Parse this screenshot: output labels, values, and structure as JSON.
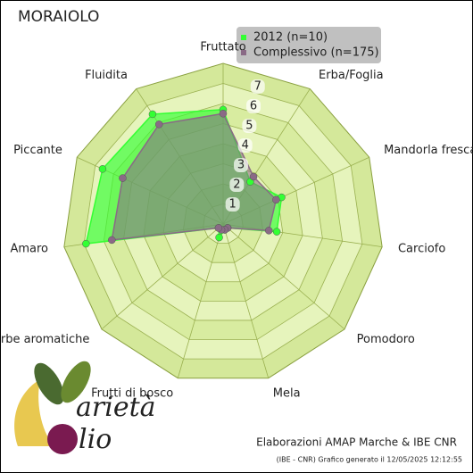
{
  "chart_data": {
    "type": "radar",
    "title": "MORAIOLO",
    "categories": [
      "Fruttato",
      "Erba/Foglia",
      "Mandorla fresca",
      "Carciofo",
      "Pomodoro",
      "Mela",
      "Frutti di bosco",
      "Erbe aromatiche",
      "Amaro",
      "Piccante",
      "Fluidita"
    ],
    "series": [
      {
        "name": "2012 (n=10)",
        "color": "#33ff33",
        "values": [
          5.7,
          2.5,
          3.2,
          2.7,
          0.3,
          0.3,
          0.7,
          0.3,
          6.9,
          6.6,
          6.5
        ]
      },
      {
        "name": "Complessivo (n=175)",
        "color": "#8a6a86",
        "values": [
          5.5,
          2.8,
          2.9,
          2.3,
          0.3,
          0.3,
          0.3,
          0.3,
          5.6,
          5.5,
          5.9
        ]
      }
    ],
    "ylim": [
      0,
      8
    ],
    "yticks": [
      1,
      2,
      3,
      4,
      5,
      6,
      7
    ],
    "footer": "Elaborazioni AMAP Marche & IBE CNR",
    "footnote": "(IBE - CNR) Grafico generato il 12/05/2025 12:12:55",
    "logo": [
      "arietà",
      "lio"
    ]
  }
}
